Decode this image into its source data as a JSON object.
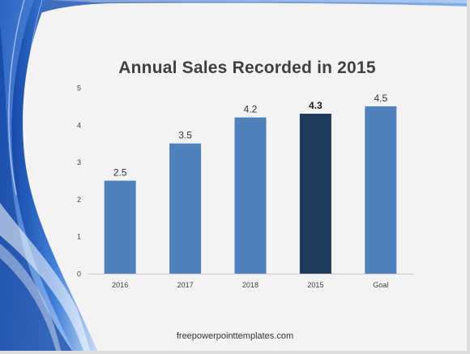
{
  "slide": {
    "footer": "freepowerpointtemplates.com"
  },
  "chart_data": {
    "type": "bar",
    "title": "Annual Sales Recorded in 2015",
    "categories": [
      "2016",
      "2017",
      "2018",
      "2015",
      "Goal"
    ],
    "values": [
      2.5,
      3.5,
      4.2,
      4.3,
      4.5
    ],
    "data_labels": [
      "2.5",
      "3.5",
      "4.2",
      "4.3",
      "4.5"
    ],
    "highlight_index": 3,
    "ylim": [
      0,
      5
    ],
    "yticks": [
      0,
      1,
      2,
      3,
      4,
      5
    ],
    "xlabel": "",
    "ylabel": "",
    "grid": false,
    "colors": {
      "bar": "#4f81bd",
      "highlight": "#1f3a5a",
      "axis": "#c8c8c8",
      "tick_text": "#404040",
      "label_text": "#333333",
      "title_text": "#404040"
    }
  }
}
